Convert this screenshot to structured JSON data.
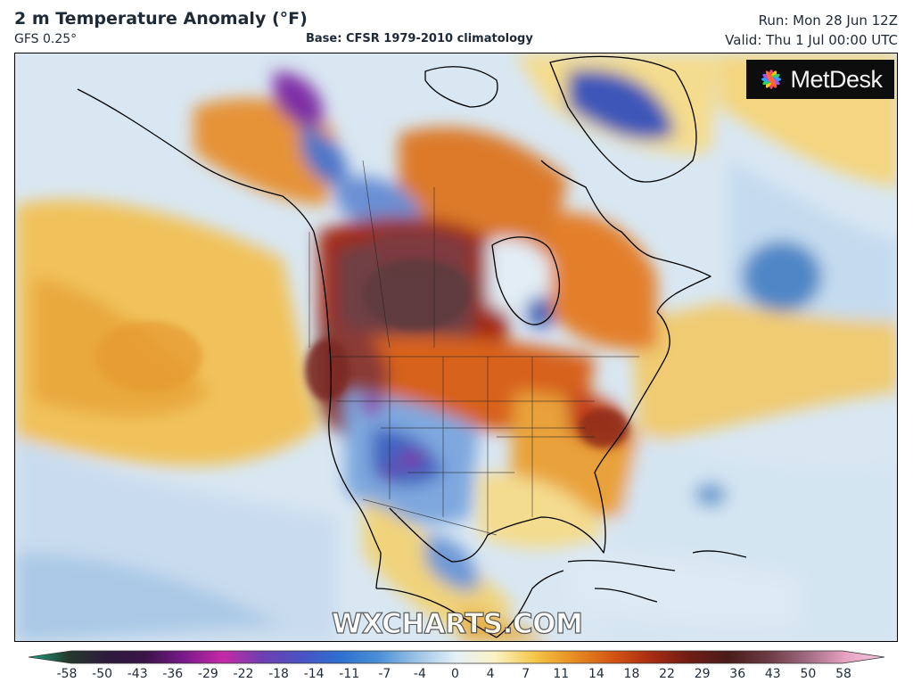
{
  "header": {
    "title": "2 m Temperature Anomaly (°F)",
    "model": "GFS 0.25°",
    "base": "Base: CFSR 1979-2010 climatology",
    "run": "Run: Mon 28 Jun 12Z",
    "valid": "Valid: Thu 1 Jul 00:00 UTC"
  },
  "logo": {
    "text": "MetDesk",
    "icon": "metdesk-flower-icon"
  },
  "watermark": "WXCHARTS.COM",
  "colorbar": {
    "ticks": [
      "-58",
      "-50",
      "-43",
      "-36",
      "-29",
      "-22",
      "-18",
      "-14",
      "-11",
      "-7",
      "-4",
      "0",
      "4",
      "7",
      "11",
      "14",
      "18",
      "22",
      "29",
      "36",
      "43",
      "50",
      "58"
    ],
    "colors": [
      "#1aa889",
      "#253a2c",
      "#2d1b3b",
      "#3a1448",
      "#7a1a8a",
      "#c52aa6",
      "#6d3fb0",
      "#4a52c4",
      "#2e6fd0",
      "#4c8fd6",
      "#9ec4e6",
      "#e4f1f8",
      "#fbf2c2",
      "#f4c748",
      "#e88d22",
      "#d45513",
      "#a82c12",
      "#6e1c14",
      "#4a1c1a",
      "#6b3a44",
      "#a06a80",
      "#e6a2c2",
      "#f4cde0"
    ]
  },
  "map_regions": [
    {
      "name": "pacific-warm-band",
      "level": "warm"
    },
    {
      "name": "canada-hot-core",
      "level": "extreme-warm"
    },
    {
      "name": "western-us-cool",
      "level": "cool"
    },
    {
      "name": "greenland-cold",
      "level": "cold"
    },
    {
      "name": "eastern-us-warm",
      "level": "warm"
    }
  ]
}
